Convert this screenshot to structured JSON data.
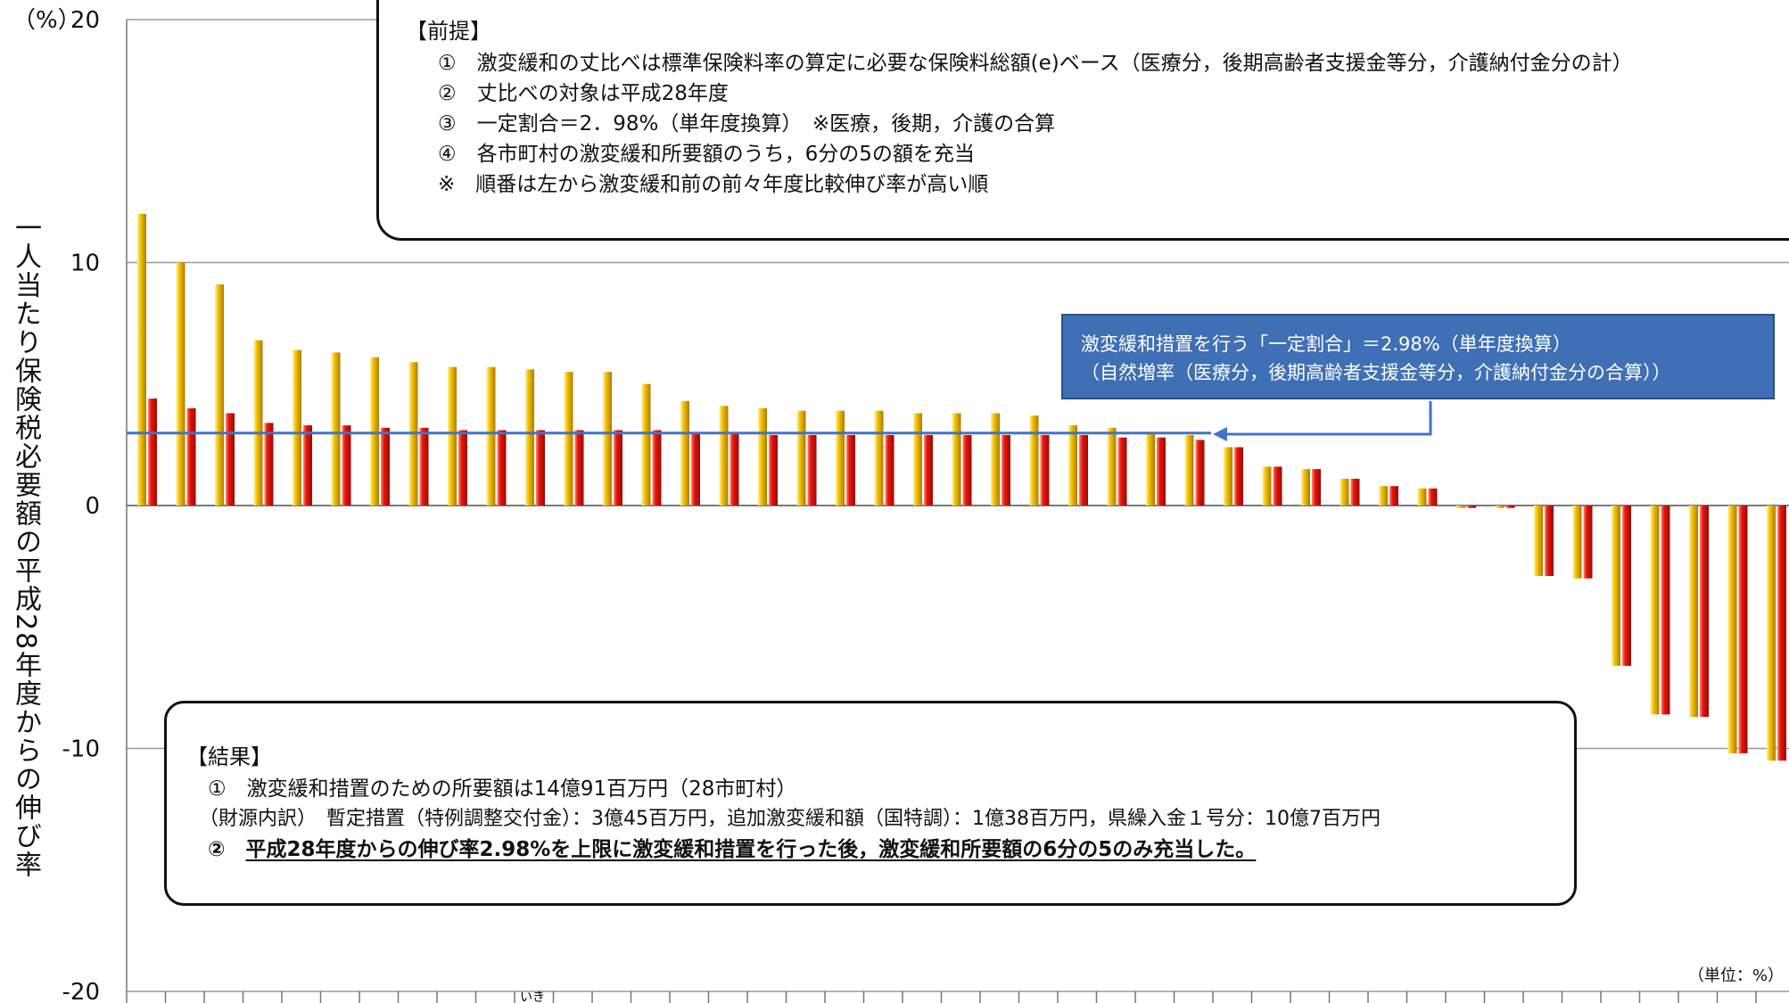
{
  "chart_data": {
    "type": "bar",
    "y_unit_label": "（%）",
    "ylabel": "一人当たり保険税必要額の平成28年度からの伸び率",
    "ylim": [
      -20,
      20
    ],
    "yticks": [
      {
        "value": 20,
        "label": "20"
      },
      {
        "value": 10,
        "label": "10"
      },
      {
        "value": 0,
        "label": "0"
      },
      {
        "value": -10,
        "label": "-10"
      },
      {
        "value": -20,
        "label": "-20"
      }
    ],
    "grid": true,
    "series": [
      {
        "color": "#e8b400",
        "values": [
          12.0,
          10.0,
          9.1,
          6.8,
          6.4,
          6.3,
          6.1,
          5.9,
          5.7,
          5.7,
          5.6,
          5.5,
          5.5,
          5.0,
          4.3,
          4.1,
          4.0,
          3.9,
          3.9,
          3.9,
          3.8,
          3.8,
          3.8,
          3.7,
          3.3,
          3.2,
          3.0,
          2.9,
          2.4,
          1.6,
          1.5,
          1.1,
          0.8,
          0.7,
          -0.1,
          -0.1,
          -2.9,
          -3.0,
          -6.6,
          -8.6,
          -8.7,
          -10.2,
          -10.5
        ]
      },
      {
        "color": "#e01a10",
        "values": [
          4.4,
          4.0,
          3.8,
          3.4,
          3.3,
          3.3,
          3.2,
          3.2,
          3.1,
          3.1,
          3.1,
          3.1,
          3.1,
          3.1,
          3.0,
          3.0,
          2.9,
          2.9,
          2.9,
          2.9,
          2.9,
          2.9,
          2.9,
          2.9,
          2.9,
          2.8,
          2.8,
          2.7,
          2.4,
          1.6,
          1.5,
          1.1,
          0.8,
          0.7,
          -0.1,
          -0.1,
          -2.9,
          -3.0,
          -6.6,
          -8.6,
          -8.7,
          -10.2,
          -10.5
        ]
      }
    ],
    "reference_line": {
      "value": 2.98,
      "color": "#4472c4"
    },
    "unit_note": "（単位：%）",
    "partial_tick_label": "いき"
  },
  "premise": {
    "title": "【前提】",
    "lines": [
      "①　激変緩和の丈比べは標準保険料率の算定に必要な保険料総額(e)ベース（医療分，後期高齢者支援金等分，介護納付金分の計）",
      "②　丈比べの対象は平成28年度",
      "③　一定割合＝2．98%（単年度換算）　※医療，後期，介護の合算",
      "④　各市町村の激変緩和所要額のうち，6分の5の額を充当",
      "※　順番は左から激変緩和前の前々年度比較伸び率が高い順"
    ]
  },
  "callout": {
    "line1": "激変緩和措置を行う「一定割合」＝2.98%（単年度換算）",
    "line2": "（自然増率（医療分，後期高齢者支援金等分，介護納付金分の合算））"
  },
  "result": {
    "title": "【結果】",
    "line1": "①　激変緩和措置のための所要額は14億91百万円（28市町村）",
    "line2": "（財源内訳）　暫定措置（特例調整交付金）：3億45百万円，追加激変緩和額（国特調）：1億38百万円，県繰入金１号分：10億7百万円",
    "line3_prefix": "②　",
    "line3": "平成28年度からの伸び率2.98%を上限に激変緩和措置を行った後，激変緩和所要額の6分の5のみ充当した。"
  }
}
